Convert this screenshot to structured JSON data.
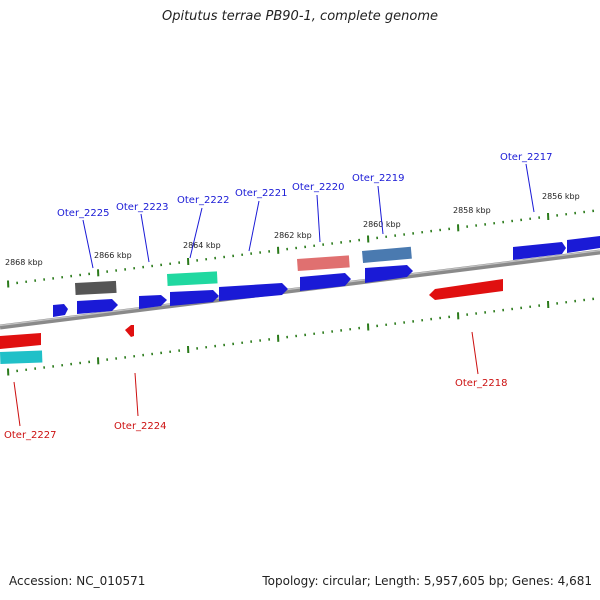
{
  "title": "Opitutus terrae PB90-1, complete genome",
  "footer": {
    "accession": "Accession: NC_010571",
    "summary": "Topology: circular; Length: 5,957,605 bp; Genes: 4,681"
  },
  "kbp_labels": [
    "2868 kbp",
    "2866 kbp",
    "2864 kbp",
    "2862 kbp",
    "2860 kbp",
    "2858 kbp",
    "2856 kbp"
  ],
  "gene_labels_top": [
    "Oter_2225",
    "Oter_2223",
    "Oter_2222",
    "Oter_2221",
    "Oter_2220",
    "Oter_2219",
    "Oter_2217"
  ],
  "gene_labels_bottom": [
    "Oter_2227",
    "Oter_2224",
    "Oter_2218"
  ],
  "colors": {
    "forward_gene": "#1a1ad6",
    "reverse_gene": "#e01010",
    "backbone": "#8a8a8a",
    "ticks": "#2a7a1a",
    "label_top": "#1a1ad6",
    "label_bottom": "#cc1010",
    "feature_gray": "#555555",
    "feature_teal": "#20d8a0",
    "feature_pink": "#e07070",
    "feature_steel": "#4a7ab0",
    "feature_cyan": "#20c0c8"
  }
}
